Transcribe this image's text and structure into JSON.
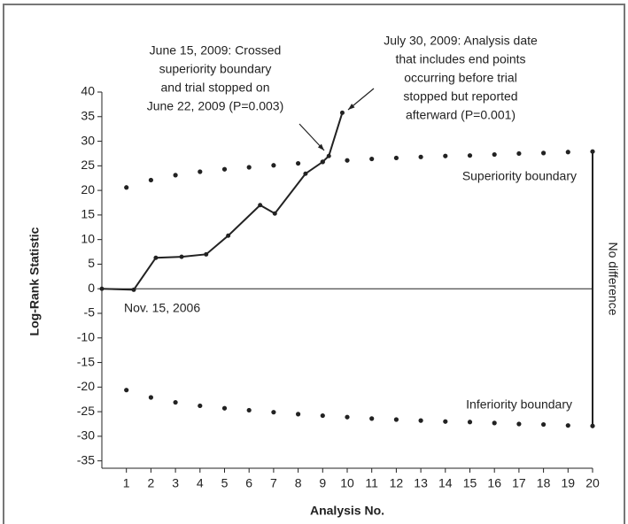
{
  "chart_data": {
    "type": "line",
    "ylabel": "Log-Rank Statistic",
    "xlabel": "Analysis No.",
    "xlim": [
      0,
      20
    ],
    "ylim": [
      -36.5,
      40
    ],
    "xticks": [
      1,
      2,
      3,
      4,
      5,
      6,
      7,
      8,
      9,
      10,
      11,
      12,
      13,
      14,
      15,
      16,
      17,
      18,
      19,
      20
    ],
    "yticks": [
      -35,
      -30,
      -25,
      -20,
      -15,
      -10,
      -5,
      0,
      5,
      10,
      15,
      20,
      25,
      30,
      35,
      40
    ],
    "color": "#222222",
    "series": [
      {
        "style": "line",
        "x": [
          0,
          1.3,
          2.2,
          3.25,
          4.25,
          5.15,
          6.45,
          7.05,
          8.3,
          9.0,
          9.25,
          9.8
        ],
        "values": [
          0,
          -0.2,
          6.3,
          6.5,
          7.0,
          10.8,
          17.0,
          15.3,
          23.4,
          25.8,
          27.0,
          35.8
        ]
      },
      {
        "style": "dots",
        "name": "Superiority boundary",
        "x": [
          1,
          2,
          3,
          4,
          5,
          6,
          7,
          8,
          9,
          10,
          11,
          12,
          13,
          14,
          15,
          16,
          17,
          18,
          19,
          20
        ],
        "values": [
          20.6,
          22.1,
          23.1,
          23.8,
          24.3,
          24.7,
          25.1,
          25.5,
          25.8,
          26.1,
          26.4,
          26.6,
          26.8,
          27.0,
          27.1,
          27.3,
          27.5,
          27.6,
          27.8,
          27.9
        ]
      },
      {
        "style": "dots",
        "name": "Inferiority boundary",
        "x": [
          1,
          2,
          3,
          4,
          5,
          6,
          7,
          8,
          9,
          10,
          11,
          12,
          13,
          14,
          15,
          16,
          17,
          18,
          19,
          20
        ],
        "values": [
          -20.6,
          -22.1,
          -23.1,
          -23.8,
          -24.3,
          -24.7,
          -25.1,
          -25.5,
          -25.8,
          -26.1,
          -26.4,
          -26.6,
          -26.8,
          -27.0,
          -27.1,
          -27.3,
          -27.5,
          -27.6,
          -27.8,
          -27.9
        ]
      }
    ],
    "vline_label": "No difference",
    "annotations": [
      {
        "lines": [
          "Nov. 15, 2006"
        ]
      },
      {
        "lines": [
          "June 15, 2009: Crossed",
          "superiority boundary",
          "and trial stopped on",
          "June 22, 2009 (P=0.003)"
        ]
      },
      {
        "lines": [
          "July 30, 2009: Analysis date",
          "that includes end points",
          "occurring before trial",
          "stopped but reported",
          "afterward (P=0.001)"
        ]
      }
    ]
  }
}
